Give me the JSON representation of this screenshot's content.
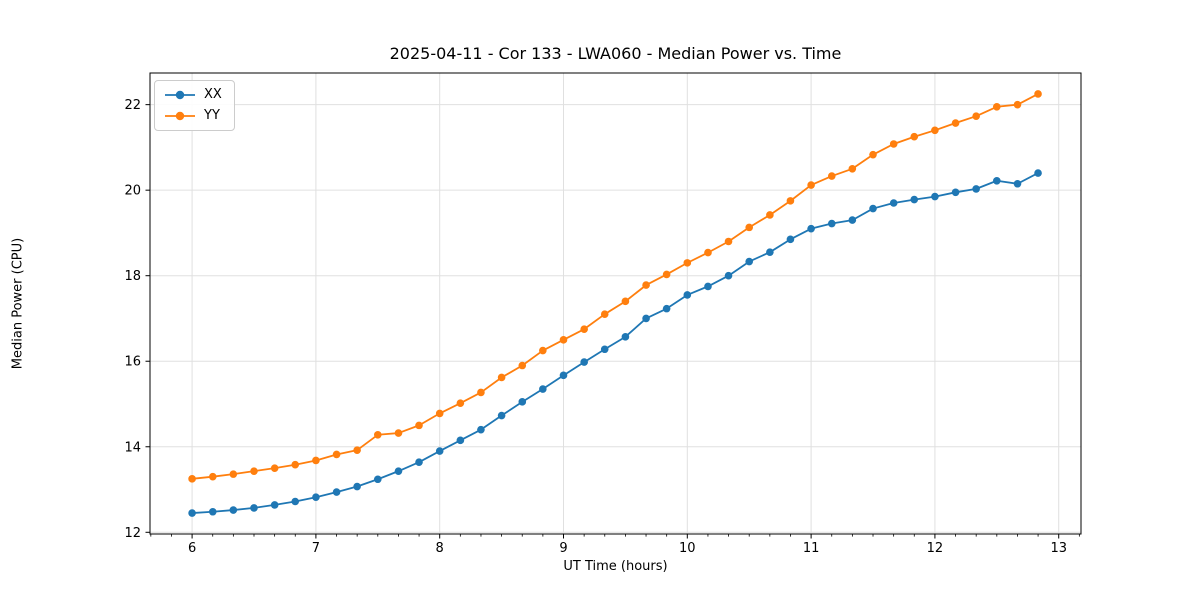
{
  "figure": {
    "title": "2025-04-11 - Cor 133 - LWA060 - Median Power vs. Time"
  },
  "chart_data": {
    "type": "line",
    "title": "2025-04-11 - Cor 133 - LWA060 - Median Power vs. Time",
    "xlabel": "UT Time (hours)",
    "ylabel": "Median Power (CPU)",
    "x": [
      6.0,
      6.167,
      6.333,
      6.5,
      6.667,
      6.833,
      7.0,
      7.167,
      7.333,
      7.5,
      7.667,
      7.833,
      8.0,
      8.167,
      8.333,
      8.5,
      8.667,
      8.833,
      9.0,
      9.167,
      9.333,
      9.5,
      9.667,
      9.833,
      10.0,
      10.167,
      10.333,
      10.5,
      10.667,
      10.833,
      11.0,
      11.167,
      11.333,
      11.5,
      11.667,
      11.833,
      12.0,
      12.167,
      12.333,
      12.5,
      12.667,
      12.833
    ],
    "series": [
      {
        "name": "XX",
        "color": "#1f77b4",
        "values": [
          12.45,
          12.48,
          12.52,
          12.57,
          12.64,
          12.72,
          12.82,
          12.94,
          13.07,
          13.24,
          13.43,
          13.64,
          13.9,
          14.15,
          14.4,
          14.73,
          15.05,
          15.35,
          15.67,
          15.98,
          16.28,
          16.57,
          17.0,
          17.23,
          17.55,
          17.75,
          18.0,
          18.33,
          18.55,
          18.85,
          19.1,
          19.22,
          19.3,
          19.57,
          19.7,
          19.78,
          19.85,
          19.95,
          20.03,
          20.22,
          20.15,
          20.4
        ]
      },
      {
        "name": "YY",
        "color": "#ff7f0e",
        "values": [
          13.25,
          13.3,
          13.36,
          13.43,
          13.5,
          13.58,
          13.68,
          13.82,
          13.92,
          14.28,
          14.32,
          14.5,
          14.78,
          15.02,
          15.27,
          15.62,
          15.9,
          16.25,
          16.5,
          16.75,
          17.1,
          17.4,
          17.78,
          18.03,
          18.3,
          18.54,
          18.8,
          19.13,
          19.42,
          19.75,
          20.12,
          20.33,
          20.5,
          20.83,
          21.08,
          21.25,
          21.4,
          21.57,
          21.73,
          21.95,
          22.0,
          22.25
        ]
      }
    ],
    "xlim": [
      5.66,
      13.18
    ],
    "ylim": [
      11.96,
      22.74
    ],
    "xticks": [
      6,
      7,
      8,
      9,
      10,
      11,
      12,
      13
    ],
    "yticks": [
      12,
      14,
      16,
      18,
      20,
      22
    ],
    "x_minor_per_unit": 6,
    "grid": true,
    "legend_position": "upper-left",
    "marker": "circle",
    "style": {
      "grid_color": "#e0e0e0",
      "spine_color": "#000000",
      "tick_color": "#000000",
      "marker_radius": 3.8,
      "line_width": 1.8
    }
  }
}
